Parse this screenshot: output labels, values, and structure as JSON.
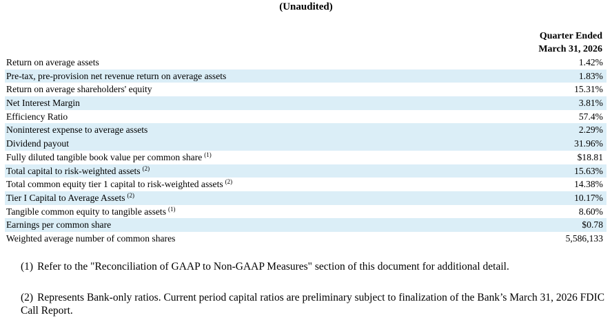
{
  "header": {
    "title": "(Unaudited)",
    "column_line1": "Quarter Ended",
    "column_line2": "March 31, 2026"
  },
  "rows": [
    {
      "label": "Return on average assets",
      "note": "",
      "value": "1.42%"
    },
    {
      "label": "Pre-tax, pre-provision net revenue return on average assets",
      "note": "",
      "value": "1.83%"
    },
    {
      "label": "Return on average shareholders' equity",
      "note": "",
      "value": "15.31%"
    },
    {
      "label": "Net Interest Margin",
      "note": "",
      "value": "3.81%"
    },
    {
      "label": "Efficiency Ratio",
      "note": "",
      "value": "57.4%"
    },
    {
      "label": "Noninterest expense to average assets",
      "note": "",
      "value": "2.29%"
    },
    {
      "label": "Dividend payout",
      "note": "",
      "value": "31.96%"
    },
    {
      "label": "Fully diluted tangible book value per common share",
      "note": "(1)",
      "value": "$18.81"
    },
    {
      "label": "Total capital to risk-weighted assets",
      "note": "(2)",
      "value": "15.63%"
    },
    {
      "label": "Total common equity tier 1 capital to risk-weighted assets",
      "note": "(2)",
      "value": "14.38%"
    },
    {
      "label": "Tier I Capital to Average Assets",
      "note": "(2)",
      "value": "10.17%"
    },
    {
      "label": "Tangible common equity to tangible assets",
      "note": "(1)",
      "value": "8.60%"
    },
    {
      "label": "Earnings per common share",
      "note": "",
      "value": "$0.78"
    },
    {
      "label": "Weighted average number of common shares",
      "note": "",
      "value": "5,586,133"
    }
  ],
  "footnotes": [
    {
      "number": "(1)",
      "text": "Refer to the \"Reconciliation of GAAP to Non-GAAP Measures\" section of this document for additional detail."
    },
    {
      "number": "(2)",
      "text": "Represents Bank-only ratios. Current period capital ratios are preliminary subject to finalization of the Bank’s March 31, 2026 FDIC Call Report."
    }
  ],
  "colors": {
    "row_shade": "#dbeef7",
    "text": "#000000"
  }
}
